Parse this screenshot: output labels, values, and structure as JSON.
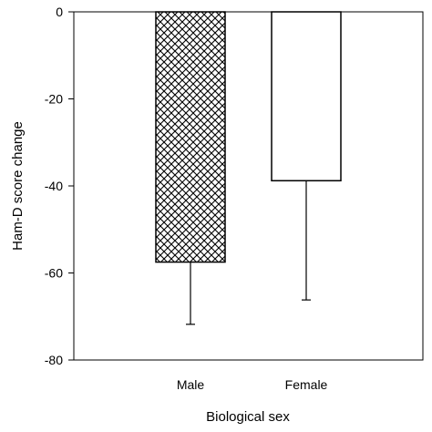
{
  "chart_data": {
    "type": "bar",
    "title": "",
    "xlabel": "Biological sex",
    "ylabel": "Ham-D score change",
    "categories": [
      "Male",
      "Female"
    ],
    "values": [
      -57.5,
      -38.8
    ],
    "error_values": [
      -71.8,
      -66.2
    ],
    "ylim": [
      -80,
      0
    ],
    "yticks": [
      0,
      -20,
      -40,
      -60,
      -80
    ],
    "ytick_labels": [
      "0",
      "-20",
      "-40",
      "-60",
      "-80"
    ],
    "bar_fills": [
      "crosshatch",
      "white"
    ],
    "grid": false,
    "legend": "none"
  }
}
